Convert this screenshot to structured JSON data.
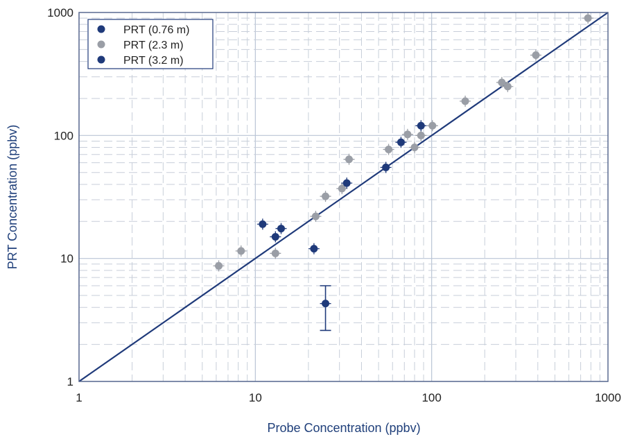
{
  "chart_data": {
    "type": "scatter",
    "title": "",
    "xlabel": "Probe Concentration (ppbv)",
    "ylabel": "PRT Concentration (ppbv)",
    "xscale": "log",
    "yscale": "log",
    "xlim": [
      1,
      1000
    ],
    "ylim": [
      1,
      1000
    ],
    "x_ticks": [
      "1",
      "10",
      "100",
      "1000"
    ],
    "y_ticks": [
      "1",
      "10",
      "100",
      "1000"
    ],
    "grid": true,
    "legend_position": "top-left",
    "reference_line": {
      "label": "1:1",
      "x": [
        1,
        1000
      ],
      "y": [
        1,
        1000
      ],
      "color": "#1f3a7a"
    },
    "series": [
      {
        "name": "PRT (0.76 m)",
        "color": "#1f3a7a",
        "points": [
          {
            "x": 11,
            "y": 19
          },
          {
            "x": 13,
            "y": 15
          },
          {
            "x": 14,
            "y": 17.5
          },
          {
            "x": 21.5,
            "y": 12
          },
          {
            "x": 25,
            "y": 4.3,
            "y_low": 2.6,
            "y_high": 6.0
          },
          {
            "x": 33,
            "y": 41
          },
          {
            "x": 55,
            "y": 55
          },
          {
            "x": 67,
            "y": 88
          },
          {
            "x": 87,
            "y": 120
          }
        ]
      },
      {
        "name": "PRT (2.3 m)",
        "color": "#9a9ea6",
        "points": [
          {
            "x": 6.2,
            "y": 8.7
          },
          {
            "x": 8.3,
            "y": 11.5
          },
          {
            "x": 13,
            "y": 11
          },
          {
            "x": 22,
            "y": 22
          },
          {
            "x": 25,
            "y": 32
          },
          {
            "x": 31,
            "y": 37
          },
          {
            "x": 34,
            "y": 64
          },
          {
            "x": 57,
            "y": 77
          },
          {
            "x": 73,
            "y": 102
          },
          {
            "x": 80,
            "y": 80
          },
          {
            "x": 87,
            "y": 100
          },
          {
            "x": 101,
            "y": 120
          },
          {
            "x": 155,
            "y": 190
          },
          {
            "x": 250,
            "y": 270
          },
          {
            "x": 270,
            "y": 250
          },
          {
            "x": 390,
            "y": 450
          },
          {
            "x": 770,
            "y": 900
          }
        ]
      },
      {
        "name": "PRT (3.2 m)",
        "color": "#1f3a7a",
        "points": []
      }
    ]
  }
}
